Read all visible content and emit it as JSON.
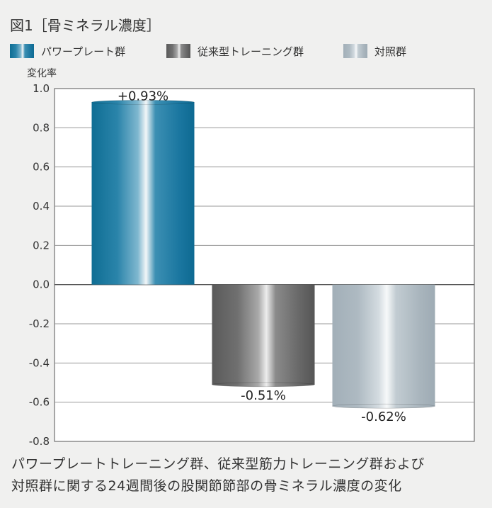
{
  "chart_data": {
    "type": "bar",
    "title": "図1［骨ミネラル濃度］",
    "ylabel": "変化率",
    "xlabel": "",
    "categories": [
      "パワープレート群",
      "従来型トレーニング群",
      "対照群"
    ],
    "values": [
      0.93,
      -0.51,
      -0.62
    ],
    "data_labels": [
      "+0.93%",
      "-0.51%",
      "-0.62%"
    ],
    "ylim": [
      -0.8,
      1.0
    ],
    "yticks": [
      "1.0",
      "0.8",
      "0.6",
      "0.4",
      "0.2",
      "0.0",
      "-0.2",
      "-0.4",
      "-0.6",
      "-0.8"
    ],
    "grid": true,
    "legend_placement": "top-left",
    "colors": {
      "パワープレート群": "#1a7aa0",
      "従来型トレーニング群": "#6b6b6b",
      "対照群": "#adb9c1"
    }
  },
  "caption": {
    "line1": "パワープレートトレーニング群、従来型筋力トレーニング群および",
    "line2": "対照群に関する24週間後の股関節節部の骨ミネラル濃度の変化"
  }
}
